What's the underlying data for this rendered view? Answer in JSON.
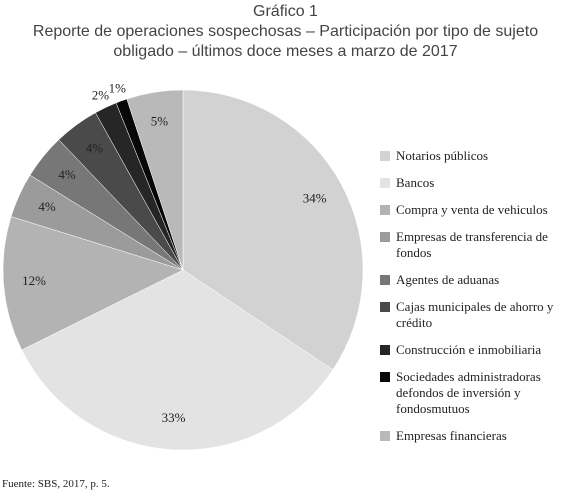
{
  "chart_data": {
    "type": "pie",
    "title": "Gráfico 1",
    "subtitle": "Reporte de operaciones sospechosas – Participación por tipo de sujeto obligado – últimos doce meses a marzo de 2017",
    "categories": [
      "Notarios públicos",
      "Bancos",
      "Compra y venta de vehiculos",
      "Empresas de transferencia de fondos",
      "Agentes de aduanas",
      "Cajas municipales de ahorro y crédito",
      "Construcción e inmobiliaria",
      "Sociedades administradoras defondos de inversión y fondosmutuos",
      "Empresas financieras"
    ],
    "values": [
      34,
      33,
      12,
      4,
      4,
      4,
      2,
      1,
      5
    ],
    "value_labels": [
      "34%",
      "33%",
      "12%",
      "4%",
      "4%",
      "4%",
      "2%",
      "1%",
      "5%"
    ],
    "colors": [
      "#d2d2d2",
      "#e3e3e3",
      "#b3b3b3",
      "#9b9b9b",
      "#777777",
      "#4a4a4a",
      "#262626",
      "#080808",
      "#b9b9b9"
    ],
    "source": "Fuente: SBS, 2017, p. 5."
  }
}
